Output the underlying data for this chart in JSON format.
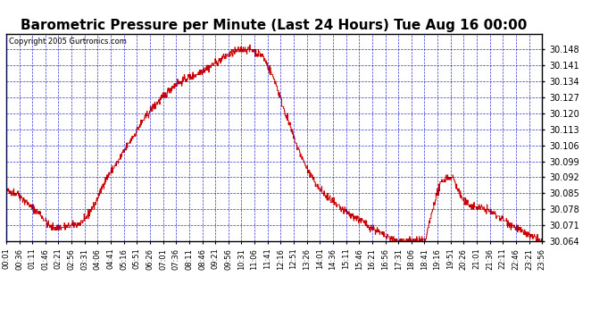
{
  "title": "Barometric Pressure per Minute (Last 24 Hours) Tue Aug 16 00:00",
  "copyright": "Copyright 2005 Gurtronics.com",
  "background_color": "#ffffff",
  "plot_bg_color": "#ffffff",
  "line_color": "#cc0000",
  "grid_color": "#0000cc",
  "y_min": 30.064,
  "y_max": 30.155,
  "y_ticks": [
    30.064,
    30.071,
    30.078,
    30.085,
    30.092,
    30.099,
    30.106,
    30.113,
    30.12,
    30.127,
    30.134,
    30.141,
    30.148
  ],
  "x_tick_labels": [
    "00:01",
    "00:36",
    "01:11",
    "01:46",
    "02:21",
    "02:56",
    "03:31",
    "04:06",
    "04:41",
    "05:16",
    "05:51",
    "06:26",
    "07:01",
    "07:36",
    "08:11",
    "08:46",
    "09:21",
    "09:56",
    "10:31",
    "11:06",
    "11:41",
    "12:16",
    "12:51",
    "13:26",
    "14:01",
    "14:36",
    "15:11",
    "15:46",
    "16:21",
    "16:56",
    "17:31",
    "18:06",
    "18:41",
    "19:16",
    "19:51",
    "20:26",
    "21:01",
    "21:36",
    "22:11",
    "22:46",
    "23:21",
    "23:56"
  ],
  "title_fontsize": 11,
  "copyright_fontsize": 6,
  "tick_fontsize": 7
}
